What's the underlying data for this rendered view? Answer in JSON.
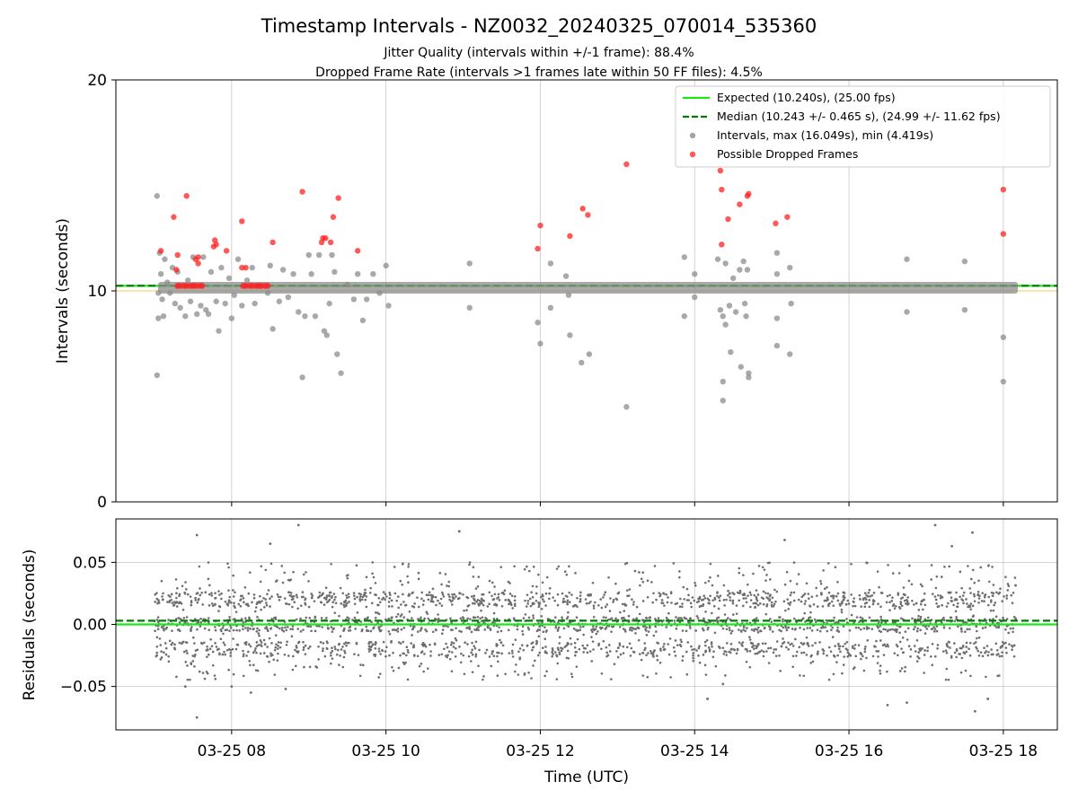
{
  "chart_data": [
    {
      "type": "scatter",
      "title": "Timestamp Intervals - NZ0032_20240325_070014_535360",
      "subtitle_lines": [
        "Jitter Quality (intervals within +/-1 frame): 88.4%",
        "Dropped Frame Rate (intervals >1 frames late within 50 FF files): 4.5%"
      ],
      "ylabel": "Intervals (seconds)",
      "xlim": [
        "03-25 06:30",
        "03-25 18:42"
      ],
      "ylim": [
        0,
        20
      ],
      "yticks": [
        0,
        10,
        20
      ],
      "ytick_labels": [
        "0",
        "10",
        "20"
      ],
      "grid": "vertical",
      "legend_position": "top-right",
      "hlines": [
        {
          "name": "Expected (10.240s), (25.00 fps)",
          "y": 10.24,
          "style": "solid",
          "color": "#1ee51e"
        },
        {
          "name": "Median (10.243 +/- 0.465 s), (24.99 +/- 11.62 fps)",
          "y": 10.243,
          "style": "dashed",
          "color": "#007a00"
        }
      ],
      "legend": [
        "Expected (10.240s), (25.00 fps)",
        "Median (10.243 +/- 0.465 s), (24.99 +/- 11.62 fps)",
        "Intervals, max (16.049s), min (4.419s)",
        "Possible Dropped Frames"
      ],
      "series": [
        {
          "name": "Intervals, max (16.049s), min (4.419s)",
          "color": "#808080",
          "points": [
            [
              "03-25 07:02",
              14.5
            ],
            [
              "03-25 07:02",
              6.0
            ],
            [
              "03-25 07:03",
              8.7
            ],
            [
              "03-25 07:03",
              9.9
            ],
            [
              "03-25 07:04",
              11.8
            ],
            [
              "03-25 07:05",
              10.8
            ],
            [
              "03-25 07:06",
              9.6
            ],
            [
              "03-25 07:07",
              8.8
            ],
            [
              "03-25 07:08",
              11.5
            ],
            [
              "03-25 07:10",
              10.4
            ],
            [
              "03-25 07:12",
              9.9
            ],
            [
              "03-25 07:14",
              11.1
            ],
            [
              "03-25 07:16",
              9.4
            ],
            [
              "03-25 07:18",
              10.9
            ],
            [
              "03-25 07:20",
              9.2
            ],
            [
              "03-25 07:24",
              8.8
            ],
            [
              "03-25 07:26",
              10.5
            ],
            [
              "03-25 07:28",
              9.5
            ],
            [
              "03-25 07:30",
              11.6
            ],
            [
              "03-25 07:33",
              8.9
            ],
            [
              "03-25 07:36",
              9.3
            ],
            [
              "03-25 07:38",
              11.6
            ],
            [
              "03-25 07:40",
              9.1
            ],
            [
              "03-25 07:42",
              8.9
            ],
            [
              "03-25 07:44",
              10.9
            ],
            [
              "03-25 07:48",
              9.5
            ],
            [
              "03-25 07:50",
              8.1
            ],
            [
              "03-25 07:52",
              11.1
            ],
            [
              "03-25 07:55",
              9.4
            ],
            [
              "03-25 07:58",
              10.6
            ],
            [
              "03-25 08:00",
              8.7
            ],
            [
              "03-25 08:02",
              9.8
            ],
            [
              "03-25 08:05",
              11.5
            ],
            [
              "03-25 08:08",
              9.3
            ],
            [
              "03-25 08:12",
              10.5
            ],
            [
              "03-25 08:16",
              11.1
            ],
            [
              "03-25 08:18",
              9.4
            ],
            [
              "03-25 08:28",
              9.9
            ],
            [
              "03-25 08:30",
              11.2
            ],
            [
              "03-25 08:32",
              8.2
            ],
            [
              "03-25 08:37",
              9.5
            ],
            [
              "03-25 08:40",
              11.0
            ],
            [
              "03-25 08:44",
              9.7
            ],
            [
              "03-25 08:48",
              10.8
            ],
            [
              "03-25 08:52",
              9.0
            ],
            [
              "03-25 08:55",
              5.9
            ],
            [
              "03-25 08:57",
              8.8
            ],
            [
              "03-25 09:00",
              11.7
            ],
            [
              "03-25 09:02",
              10.8
            ],
            [
              "03-25 09:05",
              8.8
            ],
            [
              "03-25 09:08",
              11.7
            ],
            [
              "03-25 09:12",
              8.1
            ],
            [
              "03-25 09:14",
              7.9
            ],
            [
              "03-25 09:16",
              9.4
            ],
            [
              "03-25 09:18",
              11.7
            ],
            [
              "03-25 09:20",
              10.9
            ],
            [
              "03-25 09:22",
              7.0
            ],
            [
              "03-25 09:25",
              6.1
            ],
            [
              "03-25 09:30",
              10.3
            ],
            [
              "03-25 09:35",
              9.6
            ],
            [
              "03-25 09:38",
              10.8
            ],
            [
              "03-25 09:42",
              8.6
            ],
            [
              "03-25 09:45",
              9.6
            ],
            [
              "03-25 09:50",
              10.8
            ],
            [
              "03-25 09:55",
              9.9
            ],
            [
              "03-25 10:00",
              11.2
            ],
            [
              "03-25 10:02",
              9.3
            ],
            [
              "03-25 11:05",
              11.3
            ],
            [
              "03-25 11:05",
              9.2
            ],
            [
              "03-25 11:58",
              8.5
            ],
            [
              "03-25 12:00",
              7.5
            ],
            [
              "03-25 12:08",
              11.3
            ],
            [
              "03-25 12:08",
              9.2
            ],
            [
              "03-25 12:20",
              10.7
            ],
            [
              "03-25 12:22",
              9.8
            ],
            [
              "03-25 12:23",
              7.9
            ],
            [
              "03-25 12:32",
              6.6
            ],
            [
              "03-25 12:38",
              7.0
            ],
            [
              "03-25 13:07",
              4.5
            ],
            [
              "03-25 13:52",
              11.6
            ],
            [
              "03-25 13:52",
              8.8
            ],
            [
              "03-25 14:00",
              10.8
            ],
            [
              "03-25 14:00",
              9.7
            ],
            [
              "03-25 14:18",
              11.5
            ],
            [
              "03-25 14:20",
              9.1
            ],
            [
              "03-25 14:22",
              8.8
            ],
            [
              "03-25 14:22",
              5.7
            ],
            [
              "03-25 14:22",
              4.8
            ],
            [
              "03-25 14:24",
              11.3
            ],
            [
              "03-25 14:24",
              8.4
            ],
            [
              "03-25 14:27",
              9.3
            ],
            [
              "03-25 14:28",
              7.1
            ],
            [
              "03-25 14:30",
              10.6
            ],
            [
              "03-25 14:32",
              9.0
            ],
            [
              "03-25 14:35",
              11.0
            ],
            [
              "03-25 14:36",
              6.4
            ],
            [
              "03-25 14:38",
              11.4
            ],
            [
              "03-25 14:39",
              9.4
            ],
            [
              "03-25 14:40",
              8.8
            ],
            [
              "03-25 14:41",
              11.0
            ],
            [
              "03-25 14:42",
              6.1
            ],
            [
              "03-25 14:42",
              5.9
            ],
            [
              "03-25 15:04",
              11.8
            ],
            [
              "03-25 15:04",
              10.8
            ],
            [
              "03-25 15:04",
              8.7
            ],
            [
              "03-25 15:04",
              7.4
            ],
            [
              "03-25 15:14",
              11.1
            ],
            [
              "03-25 15:15",
              9.4
            ],
            [
              "03-25 15:14",
              7.0
            ],
            [
              "03-25 16:45",
              11.5
            ],
            [
              "03-25 16:45",
              9.0
            ],
            [
              "03-25 17:30",
              11.4
            ],
            [
              "03-25 17:30",
              9.1
            ],
            [
              "03-25 18:00",
              7.8
            ],
            [
              "03-25 18:00",
              5.7
            ]
          ]
        },
        {
          "name": "Possible Dropped Frames",
          "color": "#ff0000",
          "points": [
            [
              "03-25 07:05",
              11.9
            ],
            [
              "03-25 07:15",
              13.5
            ],
            [
              "03-25 07:17",
              11.0
            ],
            [
              "03-25 07:18",
              11.7
            ],
            [
              "03-25 07:25",
              14.5
            ],
            [
              "03-25 07:32",
              11.5
            ],
            [
              "03-25 07:34",
              11.3
            ],
            [
              "03-25 07:34",
              11.6
            ],
            [
              "03-25 07:46",
              12.1
            ],
            [
              "03-25 07:47",
              12.4
            ],
            [
              "03-25 07:48",
              12.2
            ],
            [
              "03-25 07:56",
              11.9
            ],
            [
              "03-25 08:08",
              13.3
            ],
            [
              "03-25 08:08",
              11.1
            ],
            [
              "03-25 08:11",
              11.1
            ],
            [
              "03-25 08:32",
              12.3
            ],
            [
              "03-25 08:55",
              14.7
            ],
            [
              "03-25 09:10",
              12.3
            ],
            [
              "03-25 09:11",
              12.5
            ],
            [
              "03-25 09:13",
              12.5
            ],
            [
              "03-25 09:17",
              12.3
            ],
            [
              "03-25 09:19",
              13.5
            ],
            [
              "03-25 09:23",
              14.4
            ],
            [
              "03-25 09:38",
              11.9
            ],
            [
              "03-25 11:58",
              12.0
            ],
            [
              "03-25 12:00",
              13.1
            ],
            [
              "03-25 12:23",
              12.6
            ],
            [
              "03-25 12:33",
              13.9
            ],
            [
              "03-25 12:37",
              13.6
            ],
            [
              "03-25 13:07",
              16.0
            ],
            [
              "03-25 14:20",
              15.7
            ],
            [
              "03-25 14:21",
              14.8
            ],
            [
              "03-25 14:21",
              12.2
            ],
            [
              "03-25 14:26",
              13.4
            ],
            [
              "03-25 14:35",
              14.1
            ],
            [
              "03-25 14:41",
              14.5
            ],
            [
              "03-25 14:42",
              14.6
            ],
            [
              "03-25 15:03",
              13.2
            ],
            [
              "03-25 15:12",
              13.5
            ],
            [
              "03-25 18:00",
              14.8
            ],
            [
              "03-25 18:00",
              12.7
            ]
          ]
        }
      ]
    },
    {
      "type": "scatter",
      "ylabel": "Residuals (seconds)",
      "xlabel": "Time (UTC)",
      "xlim": [
        "03-25 06:30",
        "03-25 18:42"
      ],
      "ylim": [
        -0.085,
        0.085
      ],
      "yticks": [
        -0.05,
        0,
        0.05
      ],
      "ytick_labels": [
        "−0.05",
        "0.00",
        "0.05"
      ],
      "xticks": [
        "03-25 08:00",
        "03-25 10:00",
        "03-25 12:00",
        "03-25 14:00",
        "03-25 16:00",
        "03-25 18:00"
      ],
      "xtick_labels": [
        "03-25 08",
        "03-25 10",
        "03-25 12",
        "03-25 14",
        "03-25 16",
        "03-25 18"
      ],
      "grid": "both",
      "hlines": [
        {
          "y": 0.0,
          "style": "solid",
          "color": "#1ee51e"
        },
        {
          "y": 0.003,
          "style": "dashed",
          "color": "#007a00"
        }
      ],
      "residual_distribution": {
        "x_range": [
          "03-25 07:00",
          "03-25 18:10"
        ],
        "bands": [
          0.0,
          0.02,
          -0.02
        ],
        "typical_spread": [
          -0.045,
          0.05
        ],
        "extremes": [
          -0.077,
          0.08
        ]
      },
      "series": [
        {
          "name": "",
          "color": "#7f7f7f",
          "points": [
            [
              "03-25 07:33",
              -0.075
            ],
            [
              "03-25 07:33",
              0.072
            ],
            [
              "03-25 07:24",
              -0.05
            ],
            [
              "03-25 08:00",
              -0.05
            ],
            [
              "03-25 08:15",
              -0.055
            ],
            [
              "03-25 08:30",
              0.065
            ],
            [
              "03-25 08:52",
              0.08
            ],
            [
              "03-25 08:42",
              -0.052
            ],
            [
              "03-25 10:57",
              0.075
            ],
            [
              "03-25 14:10",
              -0.06
            ],
            [
              "03-25 14:22",
              -0.048
            ],
            [
              "03-25 15:10",
              0.068
            ],
            [
              "03-25 16:30",
              -0.065
            ],
            [
              "03-25 16:45",
              -0.063
            ],
            [
              "03-25 17:07",
              0.08
            ],
            [
              "03-25 17:38",
              -0.07
            ],
            [
              "03-25 17:48",
              -0.06
            ],
            [
              "03-25 17:20",
              0.063
            ],
            [
              "03-25 17:36",
              0.074
            ]
          ]
        }
      ]
    }
  ]
}
